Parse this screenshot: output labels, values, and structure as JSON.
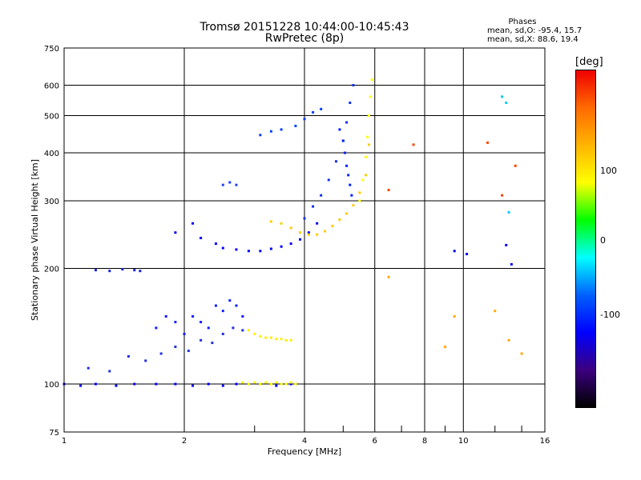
{
  "titles": {
    "line1": "Tromsø 20151228 10:44:00-10:45:43",
    "line2": "RwPretec (8p)"
  },
  "phases": {
    "header": "Phases",
    "o_stats": "mean, sd,O: -95.4, 15.7",
    "x_stats": "mean, sd,X:  88.6, 19.4"
  },
  "colorbar": {
    "unit": "[deg]",
    "labels": [
      "100",
      "0",
      "-100"
    ],
    "stops": [
      "#f00000",
      "#ff6a00",
      "#ffb400",
      "#ffff00",
      "#00ff00",
      "#00ffff",
      "#0060ff",
      "#0000ff",
      "#3c0080",
      "#000000"
    ]
  },
  "chart_data": {
    "type": "scatter",
    "title": "Tromsø 20151228 10:44:00-10:45:43",
    "subtitle": "RwPretec (8p)",
    "xlabel": "Frequency [MHz]",
    "ylabel": "Stationary phase Virtual Height [km]",
    "x_scale": "log",
    "y_scale": "log",
    "xlim": [
      1,
      16
    ],
    "ylim": [
      75,
      750
    ],
    "x_ticks": [
      "1",
      "2",
      "4",
      "6",
      "8",
      "10",
      "16"
    ],
    "y_ticks": [
      "75",
      "100",
      "200",
      "300",
      "400",
      "500",
      "600",
      "750"
    ],
    "grid": true,
    "color_scale": "phase [deg]",
    "series": [
      {
        "color": "#0000ff",
        "x": [
          1.0,
          1.1,
          1.2,
          1.35,
          1.5,
          1.7,
          1.9,
          2.1,
          2.3,
          2.5,
          2.7,
          2.9,
          3.1,
          3.4,
          3.7
        ],
        "y": [
          100,
          99,
          100,
          99,
          100,
          100,
          100,
          99,
          100,
          99,
          100,
          100,
          100,
          99,
          100
        ]
      },
      {
        "color": "#2030e0",
        "x": [
          1.15,
          1.3,
          1.45,
          1.6,
          1.75,
          1.9,
          2.05,
          2.2,
          2.35,
          2.5,
          2.65,
          2.8
        ],
        "y": [
          110,
          108,
          118,
          115,
          120,
          125,
          122,
          130,
          128,
          135,
          140,
          138
        ]
      },
      {
        "color": "#1020ff",
        "x": [
          1.7,
          1.8,
          1.9,
          2.0,
          2.1,
          2.2,
          2.3,
          2.4,
          2.5,
          2.6,
          2.7,
          2.8
        ],
        "y": [
          140,
          150,
          145,
          135,
          150,
          145,
          140,
          160,
          155,
          165,
          160,
          150
        ]
      },
      {
        "color": "#ffff00",
        "x": [
          2.8,
          2.9,
          3.0,
          3.1,
          3.2,
          3.3,
          3.4,
          3.5,
          3.6,
          3.7,
          3.8
        ],
        "y": [
          101,
          100,
          101,
          100,
          101,
          100,
          101,
          100,
          100,
          101,
          100
        ]
      },
      {
        "color": "#ffee00",
        "x": [
          2.9,
          3.0,
          3.1,
          3.2,
          3.3,
          3.4,
          3.5,
          3.6,
          3.7
        ],
        "y": [
          138,
          135,
          133,
          132,
          132,
          131,
          131,
          130,
          130
        ]
      },
      {
        "color": "#1020e0",
        "x": [
          1.2,
          1.3,
          1.4,
          1.5,
          1.55
        ],
        "y": [
          198,
          197,
          199,
          198,
          197
        ]
      },
      {
        "color": "#0000ff",
        "x": [
          1.9,
          2.1,
          2.2,
          2.4,
          2.5,
          2.7,
          2.9,
          3.1,
          3.3,
          3.5,
          3.7,
          3.9,
          4.1,
          4.3
        ],
        "y": [
          248,
          262,
          240,
          232,
          226,
          224,
          222,
          222,
          225,
          228,
          232,
          238,
          248,
          262
        ]
      },
      {
        "color": "#ffcc00",
        "x": [
          3.3,
          3.5,
          3.7,
          3.9,
          4.1,
          4.3,
          4.5,
          4.7,
          4.9,
          5.1,
          5.3,
          5.5,
          5.7,
          5.8
        ],
        "y": [
          265,
          262,
          255,
          248,
          245,
          245,
          250,
          258,
          268,
          278,
          292,
          315,
          350,
          420
        ]
      },
      {
        "color": "#1030f0",
        "x": [
          4.0,
          4.2,
          4.4,
          4.6,
          4.8,
          5.0,
          5.1,
          5.2,
          5.3
        ],
        "y": [
          270,
          290,
          310,
          340,
          380,
          430,
          480,
          540,
          600
        ]
      },
      {
        "color": "#0020ff",
        "x": [
          4.9,
          5.0,
          5.05,
          5.1,
          5.15,
          5.2,
          5.25
        ],
        "y": [
          460,
          430,
          400,
          370,
          350,
          330,
          310
        ]
      },
      {
        "color": "#ffff00",
        "x": [
          5.5,
          5.6,
          5.7,
          5.75,
          5.8,
          5.85,
          5.9
        ],
        "y": [
          300,
          340,
          390,
          440,
          500,
          560,
          620
        ]
      },
      {
        "color": "#0040ff",
        "x": [
          3.1,
          3.3,
          3.5,
          3.8,
          4.0,
          4.2,
          4.4
        ],
        "y": [
          445,
          455,
          460,
          470,
          490,
          510,
          520
        ]
      },
      {
        "color": "#2040ff",
        "x": [
          2.5,
          2.6,
          2.7
        ],
        "y": [
          330,
          335,
          330
        ]
      },
      {
        "color": "#ff4400",
        "x": [
          6.5,
          7.5,
          11.5,
          12.5,
          13.5
        ],
        "y": [
          320,
          420,
          425,
          310,
          370
        ]
      },
      {
        "color": "#0000ff",
        "x": [
          9.5,
          10.2,
          12.8,
          13.2
        ],
        "y": [
          222,
          218,
          230,
          205
        ]
      },
      {
        "color": "#ffaa00",
        "x": [
          6.5,
          9.0,
          9.5,
          12.0,
          13.0,
          14.0
        ],
        "y": [
          190,
          125,
          150,
          155,
          130,
          120
        ]
      },
      {
        "color": "#00ccff",
        "x": [
          12.5,
          12.8,
          13.0
        ],
        "y": [
          560,
          540,
          280
        ]
      }
    ]
  }
}
